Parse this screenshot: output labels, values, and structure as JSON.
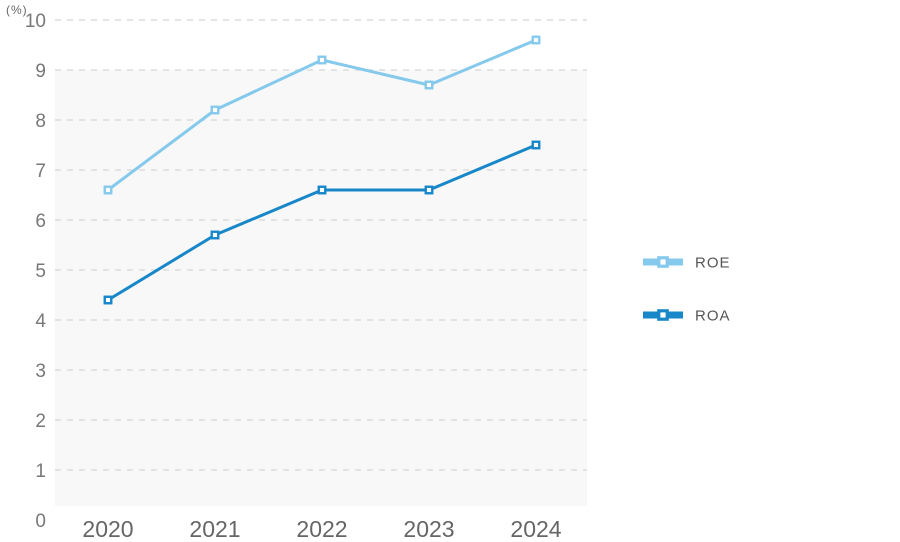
{
  "chart_data": {
    "type": "line",
    "title": "",
    "unit_label": "(%)",
    "xlabel": "",
    "ylabel": "(%)",
    "categories": [
      "2020",
      "2021",
      "2022",
      "2023",
      "2024"
    ],
    "series": [
      {
        "name": "ROE",
        "color": "#85C9EC",
        "values": [
          6.6,
          8.2,
          9.2,
          8.7,
          9.6
        ]
      },
      {
        "name": "ROA",
        "color": "#1787C9",
        "values": [
          4.4,
          5.7,
          6.6,
          6.6,
          7.5
        ]
      }
    ],
    "ylim": [
      0,
      10
    ],
    "y_tick_step": 1,
    "y_tick_labels": [
      "0",
      "1",
      "2",
      "3",
      "4",
      "5",
      "6",
      "7",
      "8",
      "9",
      "10"
    ],
    "grid": "horizontal-dashed",
    "legend_position": "right-middle",
    "marker": "open-square",
    "theme": {
      "background": "#FFFFFF",
      "plot_band_color": "#F8F8F8",
      "grid_color": "#DCDCDC",
      "y_tick_label_color": "#787878",
      "x_tick_label_color": "#666666",
      "unit_label_color": "#666666",
      "legend_text_color": "#555555"
    }
  }
}
